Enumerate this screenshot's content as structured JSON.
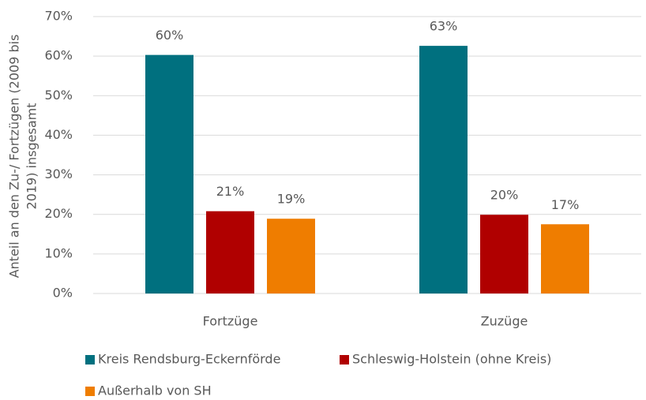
{
  "chart_data": {
    "type": "bar",
    "y_label": [
      "Anteil an den Zu-/ Fortzügen (2009 bis",
      "2019) insgesamt"
    ],
    "categories": [
      "Fortzüge",
      "Zuzüge"
    ],
    "series": [
      {
        "name": "Kreis Rendsburg-Eckernförde",
        "color": "#00707f",
        "values": [
          60.3,
          62.6
        ],
        "value_labels": [
          "60%",
          "63%"
        ]
      },
      {
        "name": "Schleswig-Holstein (ohne Kreis)",
        "color": "#b00000",
        "values": [
          20.8,
          19.9
        ],
        "value_labels": [
          "21%",
          "20%"
        ]
      },
      {
        "name": "Außerhalb von SH",
        "color": "#ef7d00",
        "values": [
          18.9,
          17.5
        ],
        "value_labels": [
          "19%",
          "17%"
        ]
      }
    ],
    "ylim": [
      0,
      70
    ],
    "yticks": [
      {
        "value": 0,
        "label": "0%"
      },
      {
        "value": 10,
        "label": "10%"
      },
      {
        "value": 20,
        "label": "20%"
      },
      {
        "value": 30,
        "label": "30%"
      },
      {
        "value": 40,
        "label": "40%"
      },
      {
        "value": 50,
        "label": "50%"
      },
      {
        "value": 60,
        "label": "60%"
      },
      {
        "value": 70,
        "label": "70%"
      }
    ],
    "grid": true
  }
}
